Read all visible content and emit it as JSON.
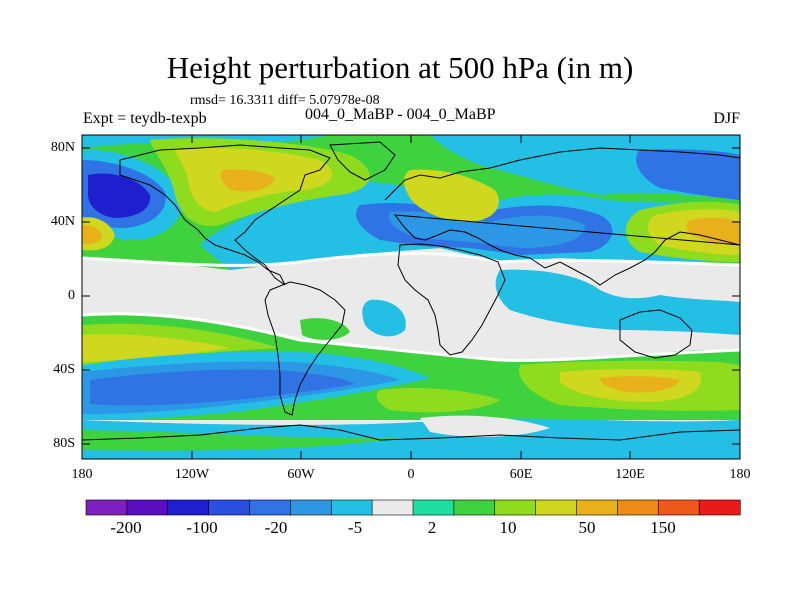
{
  "title": "Height perturbation at 500 hPa (in m)",
  "stats": "rmsd= 16.3311 diff= 5.07978e-08",
  "expt_label": "Expt = teydb-texpb",
  "experiment_names": "004_0_MaBP - 004_0_MaBP",
  "season": "DJF",
  "lat_ticks": [
    "80N",
    "40N",
    "0",
    "40S",
    "80S"
  ],
  "lon_ticks": [
    "180",
    "120W",
    "60W",
    "0",
    "60E",
    "120E",
    "180"
  ],
  "colorbar": {
    "colors": [
      "#7f1fbf",
      "#5a0fbf",
      "#1f1fcf",
      "#2a4fdf",
      "#2f73e5",
      "#2b97e5",
      "#24bfe5",
      "#eaeaea",
      "#1fdfa0",
      "#3fd23f",
      "#8fdc1f",
      "#cfd71f",
      "#e8b01a",
      "#ef8a1a",
      "#ef5a1a",
      "#e81a1a"
    ],
    "labels": [
      "-200",
      "-100",
      "-20",
      "-5",
      "2",
      "10",
      "50",
      "150"
    ]
  },
  "map_colors": {
    "white_zone": "#eaeaea",
    "cyan": "#24bfe5",
    "light_blue": "#2b97e5",
    "blue": "#2f73e5",
    "dark_blue": "#1f1fcf",
    "teal": "#1fdfa0",
    "green": "#3fd23f",
    "yellow_green": "#8fdc1f",
    "yellow": "#cfd71f",
    "orange": "#e8b01a",
    "red_orange": "#ef5a1a"
  }
}
